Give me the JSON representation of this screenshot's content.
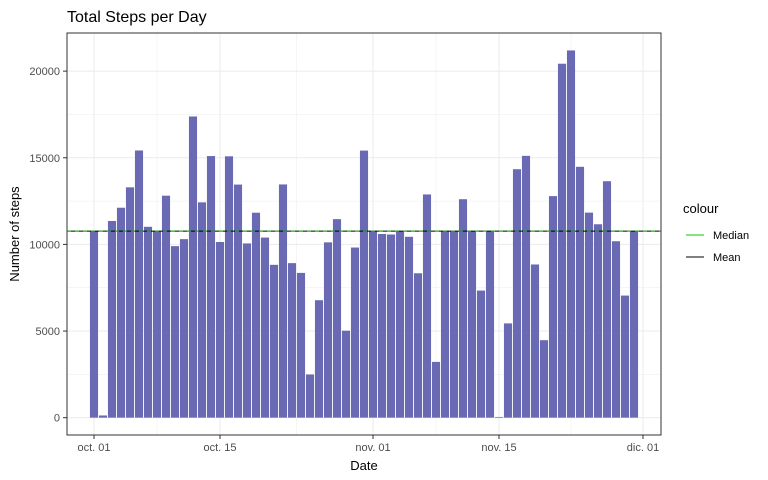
{
  "chart_data": {
    "type": "bar",
    "title": "Total Steps per Day",
    "xlabel": "Date",
    "ylabel": "Number of steps",
    "ylim": [
      -1000,
      22200
    ],
    "y_ticks": [
      0,
      5000,
      10000,
      15000,
      20000
    ],
    "y_tick_labels": [
      "0",
      "5000",
      "10000",
      "15000",
      "20000"
    ],
    "x_range": [
      -3,
      63
    ],
    "x_ticks": [
      0,
      14,
      31,
      45,
      61
    ],
    "x_tick_labels": [
      "oct. 01",
      "oct. 15",
      "nov. 01",
      "nov. 15",
      "dic. 01"
    ],
    "grid": true,
    "bar_color": "#6666b3",
    "values": [
      10766,
      126,
      11352,
      12116,
      13294,
      15420,
      11015,
      10766,
      12811,
      9900,
      10304,
      17382,
      12426,
      15098,
      10139,
      15084,
      13452,
      10056,
      11829,
      10395,
      8821,
      13460,
      8918,
      8355,
      2492,
      6778,
      10119,
      11458,
      5018,
      9819,
      15414,
      10766,
      10600,
      10571,
      10766,
      10439,
      8334,
      12883,
      3219,
      10766,
      10766,
      12608,
      10765,
      7336,
      10766,
      41,
      5441,
      14339,
      15110,
      8841,
      4472,
      12787,
      20427,
      21194,
      14478,
      11834,
      11162,
      13646,
      10183,
      7047,
      10766
    ],
    "reference_lines": [
      {
        "name": "Median",
        "value": 10766,
        "color": "#00cc00"
      },
      {
        "name": "Mean",
        "value": 10766,
        "color": "#000000"
      }
    ],
    "legend": {
      "title": "colour",
      "position": "right",
      "entries": [
        "Median",
        "Mean"
      ]
    }
  }
}
